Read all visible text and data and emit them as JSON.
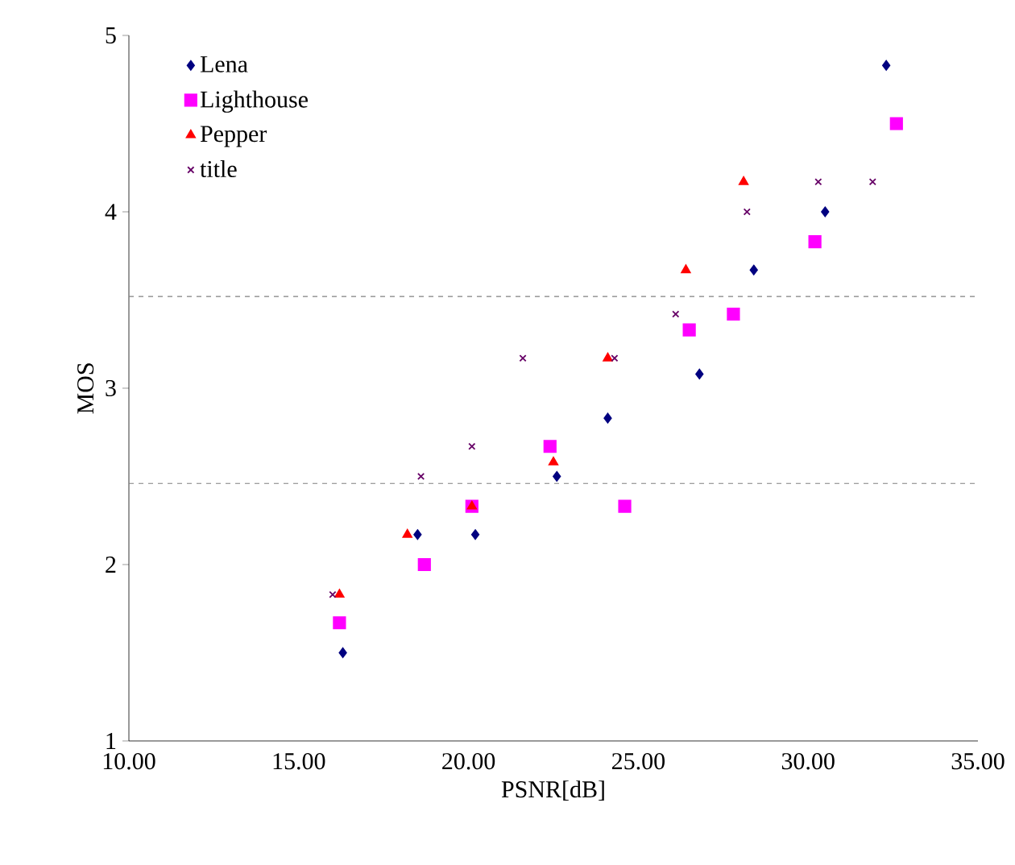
{
  "chart_data": {
    "type": "scatter",
    "xlabel": "PSNR[dB]",
    "ylabel": "MOS",
    "xlim": [
      10,
      35
    ],
    "ylim": [
      1,
      5
    ],
    "xticks": [
      {
        "value": 10,
        "label": "10.00"
      },
      {
        "value": 15,
        "label": "15.00"
      },
      {
        "value": 20,
        "label": "20.00"
      },
      {
        "value": 25,
        "label": "25.00"
      },
      {
        "value": 30,
        "label": "30.00"
      },
      {
        "value": 35,
        "label": "35.00"
      }
    ],
    "yticks": [
      1,
      2,
      3,
      4,
      5
    ],
    "legend": "top left",
    "grid": false,
    "ref_lines": [
      {
        "axis": "y",
        "value": 3.52,
        "color": "#808080",
        "line_style": "dashed"
      },
      {
        "axis": "y",
        "value": 2.46,
        "color": "#808080",
        "line_style": "dashed"
      }
    ],
    "series": [
      {
        "name": "Lena",
        "color": "#000080",
        "marker": "diamond",
        "x": [
          16.3,
          18.5,
          20.2,
          22.6,
          24.1,
          26.8,
          28.4,
          30.5,
          32.3
        ],
        "values": [
          1.5,
          2.17,
          2.17,
          2.5,
          2.83,
          3.08,
          3.67,
          4.0,
          4.83
        ]
      },
      {
        "name": "Lighthouse",
        "color": "#ff00ff",
        "marker": "square",
        "x": [
          16.2,
          18.7,
          20.1,
          22.4,
          24.6,
          26.5,
          27.8,
          30.2,
          32.6
        ],
        "values": [
          1.67,
          2.0,
          2.33,
          2.67,
          2.33,
          3.33,
          3.42,
          3.83,
          4.5
        ]
      },
      {
        "name": "Pepper",
        "color": "#ff0000",
        "marker": "triangle",
        "x": [
          16.2,
          18.2,
          20.1,
          22.5,
          24.1,
          26.4,
          28.1
        ],
        "values": [
          1.83,
          2.17,
          2.33,
          2.58,
          3.17,
          3.67,
          4.17
        ]
      },
      {
        "name": "title",
        "color": "#660066",
        "marker": "cross",
        "x": [
          16.0,
          18.6,
          20.1,
          21.6,
          24.3,
          26.1,
          28.2,
          30.3,
          31.9
        ],
        "values": [
          1.83,
          2.5,
          2.67,
          3.17,
          3.17,
          3.42,
          4.0,
          4.17,
          4.17
        ]
      }
    ]
  }
}
